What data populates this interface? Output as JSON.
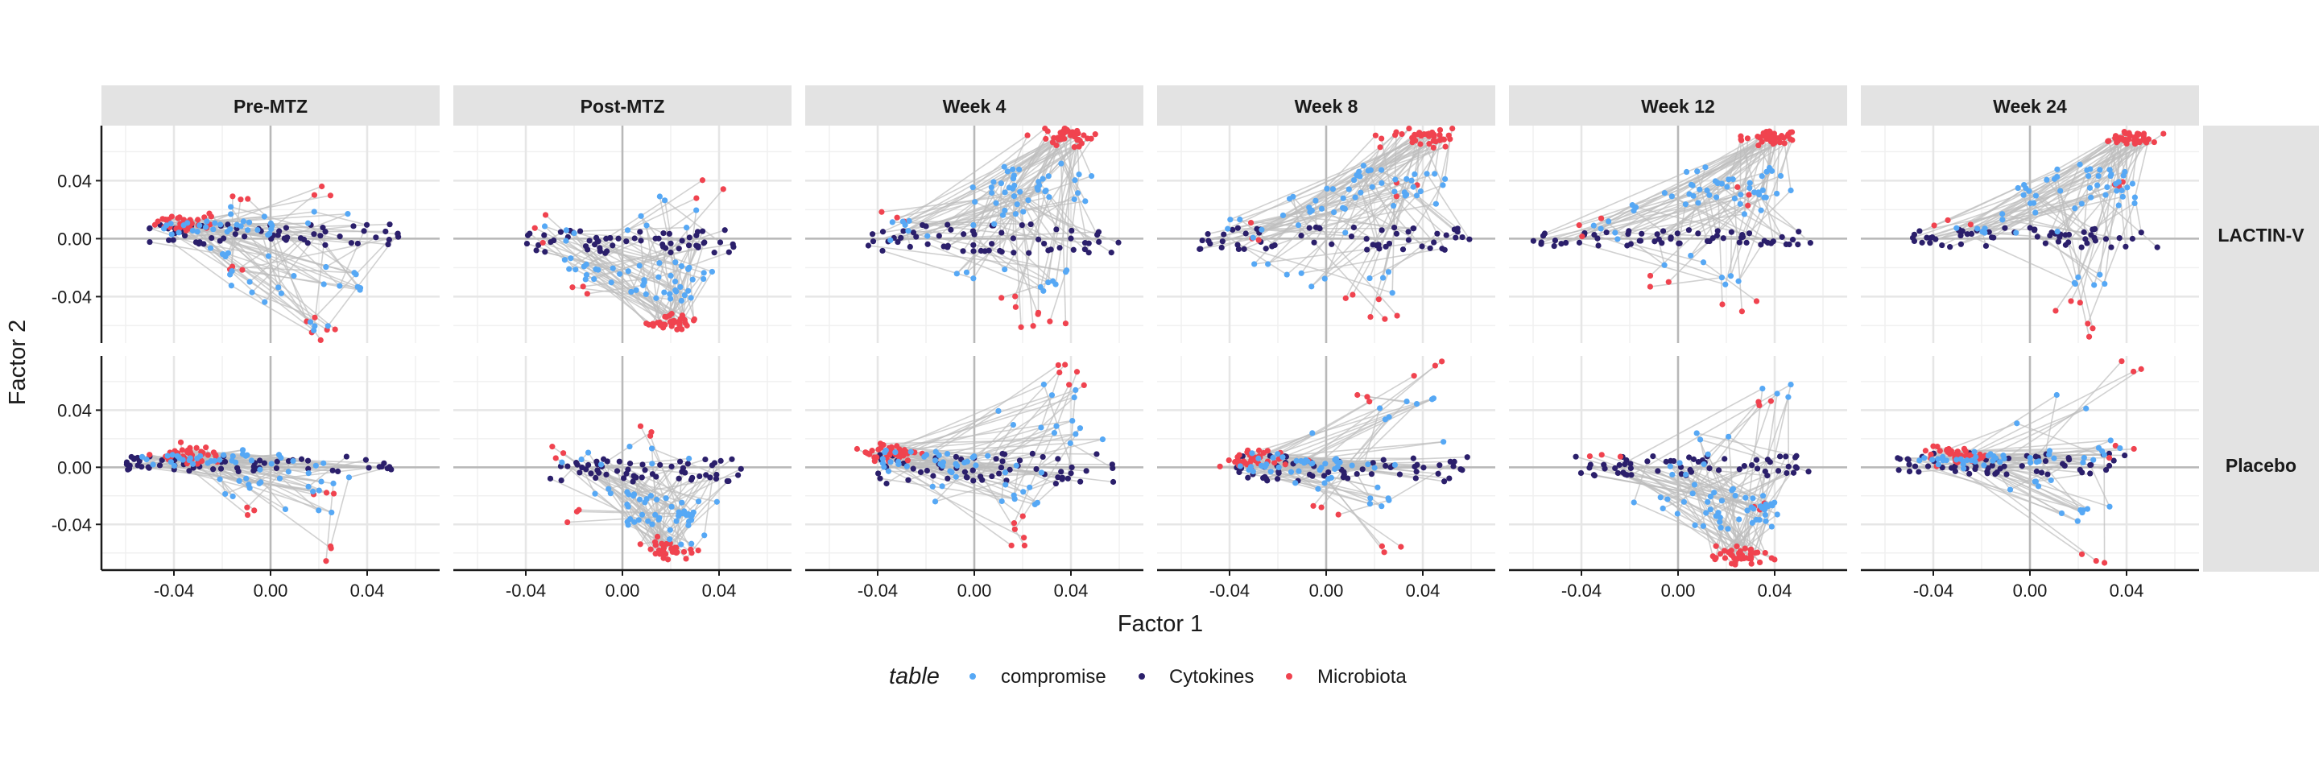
{
  "chart_data": {
    "type": "scatter",
    "xlabel": "Factor 1",
    "ylabel": "Factor 2",
    "xlim": [
      -0.07,
      0.07
    ],
    "ylim": [
      -0.072,
      0.078
    ],
    "x_ticks": [
      -0.04,
      0.0,
      0.04
    ],
    "x_tick_labels": [
      "-0.04",
      "0.00",
      "0.04"
    ],
    "y_ticks": [
      -0.04,
      0.0,
      0.04
    ],
    "y_tick_labels": [
      "-0.04",
      "0.00",
      "0.04"
    ],
    "columns": [
      "Pre-MTZ",
      "Post-MTZ",
      "Week 4",
      "Week 8",
      "Week 12",
      "Week 24"
    ],
    "rows": [
      "LACTIN-V",
      "Placebo"
    ],
    "grid": true,
    "legend": {
      "title": "table",
      "placement": "bottom",
      "entries": [
        {
          "name": "compromise",
          "color": "#56a8f5"
        },
        {
          "name": "Cytokines",
          "color": "#2b1f6b"
        },
        {
          "name": "Microbiota",
          "color": "#f0434f"
        }
      ]
    },
    "panels": [
      {
        "column": "Pre-MTZ",
        "row": "LACTIN-V",
        "cytokines_x_range": [
          -0.055,
          0.055
        ],
        "cytokines_y_range": [
          -0.005,
          0.01
        ],
        "microbiota_hotspot": [
          -0.035,
          0.01
        ],
        "microbiota_outliers": [
          [
            0.02,
            0.032
          ],
          [
            0.025,
            -0.063
          ],
          [
            0.02,
            -0.062
          ],
          [
            -0.015,
            0.027
          ],
          [
            -0.012,
            -0.02
          ]
        ],
        "compromise_spread": [
          [
            -0.01,
            -0.03
          ],
          [
            0.03,
            -0.03
          ],
          [
            0.02,
            -0.06
          ],
          [
            -0.02,
            -0.01
          ]
        ]
      },
      {
        "column": "Post-MTZ",
        "row": "LACTIN-V",
        "cytokines_x_range": [
          -0.04,
          0.05
        ],
        "cytokines_y_range": [
          -0.01,
          0.006
        ],
        "microbiota_hotspot": [
          0.02,
          -0.058
        ],
        "microbiota_outliers": [
          [
            0.037,
            0.035
          ],
          [
            -0.03,
            0.008
          ],
          [
            -0.02,
            -0.03
          ]
        ],
        "compromise_spread": [
          [
            0.01,
            -0.03
          ],
          [
            0.03,
            -0.02
          ],
          [
            -0.015,
            -0.015
          ]
        ]
      },
      {
        "column": "Week 4",
        "row": "LACTIN-V",
        "cytokines_x_range": [
          -0.045,
          0.06
        ],
        "cytokines_y_range": [
          -0.01,
          0.01
        ],
        "microbiota_hotspot": [
          0.04,
          0.07
        ],
        "microbiota_outliers": [
          [
            0.03,
            -0.055
          ],
          [
            0.025,
            -0.05
          ],
          [
            -0.035,
            0.01
          ],
          [
            0.015,
            -0.04
          ]
        ],
        "compromise_spread": [
          [
            0.03,
            0.035
          ],
          [
            0.03,
            -0.03
          ],
          [
            0.01,
            0.02
          ],
          [
            -0.03,
            0.008
          ]
        ]
      },
      {
        "column": "Week 8",
        "row": "LACTIN-V",
        "cytokines_x_range": [
          -0.055,
          0.06
        ],
        "cytokines_y_range": [
          -0.008,
          0.008
        ],
        "microbiota_hotspot": [
          0.04,
          0.07
        ],
        "microbiota_outliers": [
          [
            0.025,
            -0.055
          ],
          [
            0.03,
            0.04
          ],
          [
            -0.03,
            0.008
          ],
          [
            0.01,
            -0.04
          ]
        ],
        "compromise_spread": [
          [
            0.03,
            0.035
          ],
          [
            0.025,
            -0.03
          ],
          [
            0.005,
            0.02
          ],
          [
            -0.035,
            0.008
          ]
        ]
      },
      {
        "column": "Week 12",
        "row": "LACTIN-V",
        "cytokines_x_range": [
          -0.06,
          0.055
        ],
        "cytokines_y_range": [
          -0.006,
          0.006
        ],
        "microbiota_hotspot": [
          0.04,
          0.07
        ],
        "microbiota_outliers": [
          [
            0.025,
            -0.05
          ],
          [
            -0.04,
            0.012
          ],
          [
            0.03,
            0.03
          ],
          [
            -0.01,
            -0.03
          ]
        ],
        "compromise_spread": [
          [
            0.03,
            0.035
          ],
          [
            0.02,
            -0.03
          ],
          [
            -0.025,
            0.005
          ]
        ]
      },
      {
        "column": "Week 24",
        "row": "LACTIN-V",
        "cytokines_x_range": [
          -0.05,
          0.055
        ],
        "cytokines_y_range": [
          -0.006,
          0.008
        ],
        "microbiota_hotspot": [
          0.04,
          0.07
        ],
        "microbiota_outliers": [
          [
            0.025,
            -0.06
          ],
          [
            -0.03,
            0.01
          ],
          [
            0.035,
            0.04
          ],
          [
            0.015,
            -0.045
          ]
        ],
        "compromise_spread": [
          [
            0.035,
            0.035
          ],
          [
            0.025,
            -0.03
          ],
          [
            -0.02,
            0.005
          ]
        ]
      },
      {
        "column": "Pre-MTZ",
        "row": "Placebo",
        "cytokines_x_range": [
          -0.06,
          0.05
        ],
        "cytokines_y_range": [
          -0.003,
          0.008
        ],
        "microbiota_hotspot": [
          -0.035,
          0.009
        ],
        "microbiota_outliers": [
          [
            0.025,
            -0.062
          ],
          [
            -0.01,
            -0.03
          ],
          [
            0.02,
            -0.02
          ]
        ],
        "compromise_spread": [
          [
            -0.01,
            -0.01
          ],
          [
            0.02,
            -0.01
          ],
          [
            0.0,
            0.0
          ]
        ]
      },
      {
        "column": "Post-MTZ",
        "row": "Placebo",
        "cytokines_x_range": [
          -0.03,
          0.05
        ],
        "cytokines_y_range": [
          -0.01,
          0.006
        ],
        "microbiota_hotspot": [
          0.02,
          -0.058
        ],
        "microbiota_outliers": [
          [
            0.01,
            0.02
          ],
          [
            -0.03,
            0.01
          ],
          [
            -0.02,
            -0.03
          ]
        ],
        "compromise_spread": [
          [
            0.02,
            -0.03
          ],
          [
            0.03,
            -0.05
          ],
          [
            0.01,
            -0.02
          ]
        ]
      },
      {
        "column": "Week 4",
        "row": "Placebo",
        "cytokines_x_range": [
          -0.04,
          0.06
        ],
        "cytokines_y_range": [
          -0.012,
          0.01
        ],
        "microbiota_hotspot": [
          -0.035,
          0.01
        ],
        "microbiota_outliers": [
          [
            0.042,
            0.07
          ],
          [
            0.02,
            -0.055
          ],
          [
            0.02,
            -0.04
          ],
          [
            0.04,
            0.06
          ]
        ],
        "compromise_spread": [
          [
            0.035,
            0.03
          ],
          [
            0.015,
            -0.02
          ],
          [
            0.04,
            0.05
          ],
          [
            -0.01,
            0.0
          ]
        ]
      },
      {
        "column": "Week 8",
        "row": "Placebo",
        "cytokines_x_range": [
          -0.04,
          0.06
        ],
        "cytokines_y_range": [
          -0.01,
          0.008
        ],
        "microbiota_hotspot": [
          -0.03,
          0.005
        ],
        "microbiota_outliers": [
          [
            0.04,
            0.07
          ],
          [
            0.025,
            -0.06
          ],
          [
            0.015,
            0.05
          ],
          [
            0.0,
            -0.03
          ]
        ],
        "compromise_spread": [
          [
            0.03,
            0.04
          ],
          [
            0.02,
            -0.03
          ],
          [
            0.0,
            -0.01
          ]
        ]
      },
      {
        "column": "Week 12",
        "row": "Placebo",
        "cytokines_x_range": [
          -0.05,
          0.055
        ],
        "cytokines_y_range": [
          -0.006,
          0.008
        ],
        "microbiota_hotspot": [
          0.025,
          -0.062
        ],
        "microbiota_outliers": [
          [
            -0.03,
            0.008
          ],
          [
            0.04,
            0.045
          ],
          [
            0.035,
            -0.03
          ]
        ],
        "compromise_spread": [
          [
            0.04,
            0.05
          ],
          [
            0.02,
            -0.02
          ],
          [
            0.0,
            0.0
          ],
          [
            0.04,
            -0.03
          ]
        ]
      },
      {
        "column": "Week 24",
        "row": "Placebo",
        "cytokines_x_range": [
          -0.055,
          0.04
        ],
        "cytokines_y_range": [
          -0.005,
          0.01
        ],
        "microbiota_hotspot": [
          -0.03,
          0.008
        ],
        "microbiota_outliers": [
          [
            0.04,
            0.07
          ],
          [
            0.025,
            -0.062
          ],
          [
            0.035,
            0.015
          ]
        ],
        "compromise_spread": [
          [
            0.03,
            0.02
          ],
          [
            0.02,
            -0.03
          ],
          [
            0.0,
            -0.01
          ]
        ]
      }
    ]
  }
}
